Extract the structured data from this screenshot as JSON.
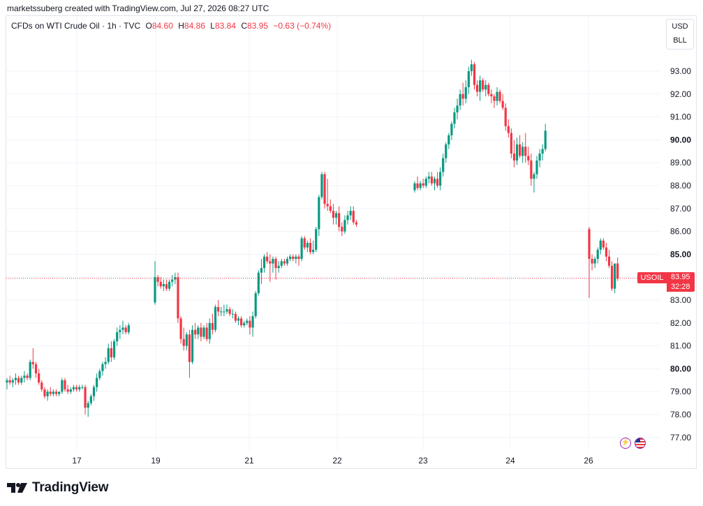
{
  "attribution": "marketssuberg created with TradingView.com, Jul 27, 2026 08:27 UTC",
  "legend": {
    "symbol": "CFDs on WTI Crude Oil · 1h · TVC",
    "open_label": "O",
    "open": "84.60",
    "high_label": "H",
    "high": "84.86",
    "low_label": "L",
    "low": "83.84",
    "close_label": "C",
    "close": "83.95",
    "change": "−0.63 (−0.74%)"
  },
  "currency": {
    "unit": "USD",
    "unit2": "BLL"
  },
  "price_tag": {
    "symbol": "USOIL",
    "price": "83.95",
    "countdown": "32:28"
  },
  "brand": {
    "name": "TradingView"
  },
  "colors": {
    "up": "#089981",
    "down": "#f23645",
    "grid": "#f0f3fa"
  },
  "chart_data": {
    "type": "candlestick",
    "y_ticks": [
      "77.00",
      "78.00",
      "79.00",
      "80.00",
      "81.00",
      "82.00",
      "83.00",
      "84.00",
      "85.00",
      "86.00",
      "87.00",
      "88.00",
      "89.00",
      "90.00",
      "91.00",
      "92.00",
      "93.00"
    ],
    "x_ticks": [
      "17",
      "19",
      "21",
      "22",
      "23",
      "24",
      "26"
    ],
    "ylim": [
      76.3,
      94.5
    ],
    "last_price": 83.95,
    "segments": [
      {
        "start_x": 10,
        "step": 4.15,
        "candles": [
          [
            79.4,
            79.6,
            79.1,
            79.5
          ],
          [
            79.5,
            79.7,
            79.3,
            79.4
          ],
          [
            79.4,
            79.6,
            79.2,
            79.5
          ],
          [
            79.5,
            79.8,
            79.3,
            79.6
          ],
          [
            79.6,
            79.7,
            79.3,
            79.4
          ],
          [
            79.4,
            79.7,
            79.3,
            79.6
          ],
          [
            79.6,
            79.9,
            79.4,
            79.7
          ],
          [
            79.7,
            79.8,
            79.5,
            79.6
          ],
          [
            79.6,
            80.4,
            79.5,
            80.3
          ],
          [
            80.3,
            80.9,
            80.0,
            80.2
          ],
          [
            80.2,
            80.3,
            79.6,
            79.8
          ],
          [
            79.8,
            80.0,
            79.3,
            79.4
          ],
          [
            79.4,
            79.5,
            79.0,
            79.1
          ],
          [
            79.1,
            79.2,
            78.7,
            78.8
          ],
          [
            78.8,
            79.1,
            78.6,
            79.0
          ],
          [
            79.0,
            79.2,
            78.8,
            78.9
          ],
          [
            78.9,
            79.1,
            78.8,
            79.0
          ],
          [
            79.0,
            79.1,
            78.8,
            78.9
          ],
          [
            78.9,
            79.0,
            78.8,
            79.0
          ],
          [
            79.0,
            79.6,
            78.9,
            79.5
          ],
          [
            79.5,
            79.6,
            79.0,
            79.1
          ],
          [
            79.1,
            79.3,
            78.9,
            79.0
          ],
          [
            79.0,
            79.2,
            78.9,
            79.1
          ],
          [
            79.1,
            79.3,
            79.0,
            79.2
          ],
          [
            79.2,
            79.3,
            79.0,
            79.1
          ],
          [
            79.1,
            79.3,
            79.0,
            79.2
          ],
          [
            79.2,
            79.3,
            79.1,
            79.2
          ],
          [
            79.2,
            79.3,
            78.0,
            78.3
          ],
          [
            78.3,
            78.6,
            77.9,
            78.5
          ],
          [
            78.5,
            78.9,
            78.4,
            78.8
          ],
          [
            78.8,
            79.3,
            78.6,
            79.2
          ],
          [
            79.2,
            79.8,
            79.0,
            79.6
          ],
          [
            79.6,
            80.0,
            79.5,
            79.9
          ],
          [
            79.9,
            80.3,
            79.7,
            80.2
          ],
          [
            80.2,
            80.5,
            80.0,
            80.3
          ],
          [
            80.3,
            81.1,
            80.2,
            80.9
          ],
          [
            80.9,
            81.2,
            80.3,
            80.5
          ],
          [
            80.5,
            81.3,
            80.4,
            81.2
          ],
          [
            81.2,
            81.8,
            81.0,
            81.6
          ],
          [
            81.6,
            81.9,
            81.3,
            81.7
          ],
          [
            81.7,
            82.1,
            81.5,
            81.8
          ],
          [
            81.8,
            81.9,
            81.5,
            81.6
          ],
          [
            81.6,
            82.0,
            81.5,
            81.9
          ]
        ]
      },
      {
        "start_x": 222,
        "step": 4.12,
        "candles": [
          [
            82.9,
            84.7,
            82.8,
            84.0
          ],
          [
            84.0,
            84.1,
            83.6,
            83.8
          ],
          [
            83.8,
            84.0,
            83.5,
            83.6
          ],
          [
            83.6,
            83.9,
            83.4,
            83.7
          ],
          [
            83.7,
            83.9,
            83.4,
            83.5
          ],
          [
            83.5,
            83.9,
            83.4,
            83.8
          ],
          [
            83.8,
            84.1,
            83.6,
            83.9
          ],
          [
            83.9,
            84.2,
            83.7,
            84.0
          ],
          [
            84.0,
            84.2,
            82.0,
            82.2
          ],
          [
            82.2,
            82.3,
            81.1,
            81.3
          ],
          [
            81.3,
            81.8,
            80.8,
            81.0
          ],
          [
            81.0,
            81.6,
            80.8,
            81.5
          ],
          [
            81.5,
            81.7,
            79.6,
            80.3
          ],
          [
            80.3,
            81.9,
            80.2,
            81.7
          ],
          [
            81.7,
            82.0,
            81.3,
            81.5
          ],
          [
            81.5,
            81.9,
            81.3,
            81.8
          ],
          [
            81.8,
            82.0,
            81.2,
            81.4
          ],
          [
            81.4,
            81.9,
            81.3,
            81.8
          ],
          [
            81.8,
            82.0,
            81.2,
            81.3
          ],
          [
            81.3,
            82.2,
            81.1,
            82.0
          ],
          [
            82.0,
            82.4,
            81.5,
            81.7
          ],
          [
            81.7,
            82.8,
            81.6,
            82.7
          ],
          [
            82.7,
            83.0,
            82.3,
            82.5
          ],
          [
            82.5,
            82.7,
            82.3,
            82.5
          ],
          [
            82.5,
            82.8,
            82.3,
            82.5
          ],
          [
            82.5,
            82.8,
            82.4,
            82.6
          ],
          [
            82.6,
            82.7,
            82.3,
            82.4
          ],
          [
            82.4,
            82.6,
            82.2,
            82.4
          ],
          [
            82.4,
            82.5,
            82.0,
            82.1
          ],
          [
            82.1,
            82.3,
            81.9,
            82.2
          ],
          [
            82.2,
            82.3,
            81.8,
            81.9
          ],
          [
            81.9,
            82.1,
            81.8,
            82.0
          ],
          [
            82.0,
            82.2,
            81.9,
            82.1
          ],
          [
            82.1,
            82.3,
            81.5,
            81.8
          ],
          [
            81.8,
            82.5,
            81.4,
            82.3
          ],
          [
            82.3,
            83.4,
            82.2,
            83.3
          ],
          [
            83.3,
            84.3,
            83.2,
            84.2
          ],
          [
            84.2,
            84.8,
            83.7,
            84.4
          ],
          [
            84.4,
            85.0,
            84.2,
            84.9
          ],
          [
            84.9,
            85.1,
            84.6,
            84.7
          ],
          [
            84.7,
            85.0,
            83.8,
            84.6
          ],
          [
            84.6,
            84.9,
            84.2,
            84.8
          ],
          [
            84.8,
            84.9,
            83.9,
            84.4
          ],
          [
            84.4,
            84.7,
            84.2,
            84.5
          ],
          [
            84.5,
            84.8,
            84.4,
            84.7
          ],
          [
            84.7,
            84.8,
            84.5,
            84.6
          ],
          [
            84.6,
            84.9,
            84.5,
            84.8
          ],
          [
            84.8,
            85.0,
            84.7,
            84.9
          ],
          [
            84.9,
            85.0,
            84.7,
            84.8
          ],
          [
            84.8,
            85.0,
            84.6,
            84.9
          ],
          [
            84.9,
            85.0,
            84.5,
            84.8
          ],
          [
            84.8,
            85.8,
            84.7,
            85.7
          ],
          [
            85.7,
            85.8,
            85.2,
            85.3
          ],
          [
            85.3,
            85.6,
            85.1,
            85.5
          ],
          [
            85.5,
            85.7,
            85.0,
            85.1
          ],
          [
            85.1,
            85.6,
            85.0,
            85.2
          ],
          [
            85.2,
            86.2,
            85.1,
            86.1
          ],
          [
            86.1,
            87.6,
            85.8,
            87.5
          ],
          [
            87.5,
            88.6,
            87.4,
            88.5
          ],
          [
            88.5,
            88.6,
            87.0,
            87.2
          ],
          [
            87.2,
            88.3,
            86.9,
            87.1
          ],
          [
            87.1,
            87.4,
            86.8,
            86.9
          ],
          [
            86.9,
            87.2,
            86.3,
            86.6
          ],
          [
            86.6,
            86.9,
            86.3,
            86.8
          ],
          [
            86.8,
            87.1,
            86.0,
            86.2
          ],
          [
            86.2,
            86.4,
            85.8,
            86.0
          ],
          [
            86.0,
            86.7,
            85.9,
            86.5
          ],
          [
            86.5,
            86.9,
            86.3,
            86.7
          ],
          [
            86.7,
            87.1,
            86.5,
            86.9
          ],
          [
            86.9,
            87.1,
            86.3,
            86.4
          ],
          [
            86.4,
            86.5,
            86.2,
            86.3
          ]
        ]
      },
      {
        "start_x": 594,
        "step": 4.07,
        "candles": [
          [
            87.8,
            88.2,
            87.7,
            88.1
          ],
          [
            88.1,
            88.4,
            87.8,
            87.9
          ],
          [
            87.9,
            88.2,
            87.8,
            88.1
          ],
          [
            88.1,
            88.3,
            87.9,
            88.0
          ],
          [
            88.0,
            88.4,
            87.9,
            88.3
          ],
          [
            88.3,
            88.6,
            88.1,
            88.4
          ],
          [
            88.4,
            88.6,
            88.0,
            88.1
          ],
          [
            88.1,
            88.4,
            87.8,
            88.3
          ],
          [
            88.3,
            88.6,
            87.9,
            88.0
          ],
          [
            88.0,
            88.8,
            87.8,
            88.6
          ],
          [
            88.6,
            89.4,
            88.4,
            89.2
          ],
          [
            89.2,
            89.9,
            89.0,
            89.8
          ],
          [
            89.8,
            90.3,
            89.6,
            90.2
          ],
          [
            90.2,
            90.8,
            90.0,
            90.7
          ],
          [
            90.7,
            91.4,
            90.5,
            91.2
          ],
          [
            91.2,
            91.8,
            90.9,
            91.5
          ],
          [
            91.5,
            92.2,
            91.3,
            92.0
          ],
          [
            92.0,
            92.5,
            91.5,
            91.8
          ],
          [
            91.8,
            92.6,
            91.6,
            92.3
          ],
          [
            92.3,
            93.2,
            92.0,
            93.0
          ],
          [
            93.0,
            93.5,
            92.8,
            93.3
          ],
          [
            93.3,
            93.4,
            92.2,
            92.4
          ],
          [
            92.4,
            92.6,
            91.9,
            92.1
          ],
          [
            92.1,
            92.8,
            91.7,
            92.6
          ],
          [
            92.6,
            92.7,
            92.1,
            92.2
          ],
          [
            92.2,
            92.6,
            91.9,
            92.4
          ],
          [
            92.4,
            92.5,
            91.9,
            92.0
          ],
          [
            92.0,
            92.2,
            91.6,
            91.9
          ],
          [
            91.9,
            92.0,
            91.4,
            91.7
          ],
          [
            91.7,
            92.3,
            91.5,
            92.1
          ],
          [
            92.1,
            92.2,
            91.6,
            91.7
          ],
          [
            91.7,
            92.0,
            91.3,
            91.4
          ],
          [
            91.4,
            91.6,
            90.4,
            90.6
          ],
          [
            90.6,
            90.9,
            90.1,
            90.3
          ],
          [
            90.3,
            90.5,
            89.2,
            89.4
          ],
          [
            89.4,
            90.0,
            88.8,
            89.1
          ],
          [
            89.1,
            90.1,
            88.9,
            89.8
          ],
          [
            89.8,
            90.2,
            89.2,
            89.3
          ],
          [
            89.3,
            89.9,
            89.0,
            89.7
          ],
          [
            89.7,
            90.3,
            89.0,
            89.3
          ],
          [
            89.3,
            89.7,
            88.9,
            89.1
          ],
          [
            89.1,
            89.4,
            88.0,
            88.3
          ],
          [
            88.3,
            88.6,
            87.7,
            88.5
          ],
          [
            88.5,
            89.3,
            88.3,
            89.1
          ],
          [
            89.1,
            89.6,
            88.8,
            89.4
          ],
          [
            89.4,
            89.8,
            89.1,
            89.6
          ],
          [
            89.6,
            90.7,
            89.5,
            90.4
          ]
        ]
      },
      {
        "start_x": 844,
        "step": 4.07,
        "candles": [
          [
            86.1,
            86.2,
            83.1,
            84.8
          ],
          [
            84.8,
            85.0,
            84.3,
            84.6
          ],
          [
            84.6,
            84.9,
            84.4,
            84.8
          ],
          [
            84.8,
            85.3,
            84.6,
            85.2
          ],
          [
            85.2,
            85.7,
            85.0,
            85.6
          ],
          [
            85.6,
            85.7,
            85.2,
            85.3
          ],
          [
            85.3,
            85.5,
            84.7,
            84.9
          ],
          [
            84.9,
            85.2,
            84.4,
            84.5
          ],
          [
            84.5,
            84.7,
            83.4,
            83.5
          ],
          [
            83.5,
            84.6,
            83.3,
            84.6
          ],
          [
            84.6,
            84.86,
            83.84,
            83.95
          ]
        ]
      }
    ]
  }
}
